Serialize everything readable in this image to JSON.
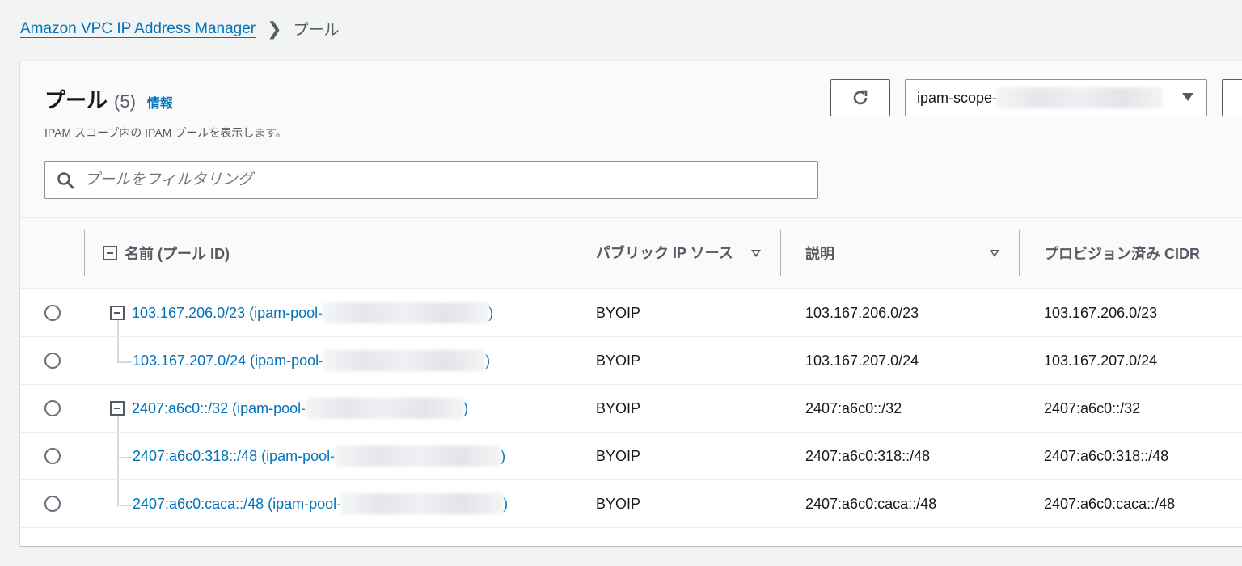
{
  "breadcrumb": {
    "root": "Amazon VPC IP Address Manager",
    "current": "プール"
  },
  "header": {
    "title": "プール",
    "count": "(5)",
    "info": "情報",
    "description": "IPAM スコープ内の IPAM プールを表示します。"
  },
  "filter": {
    "placeholder": "プールをフィルタリング"
  },
  "scope_select": {
    "value": "ipam-scope-"
  },
  "icons": {
    "refresh": "refresh-icon",
    "search": "search-icon",
    "dropdown": "caret-down-icon"
  },
  "colors": {
    "link": "#0073bb",
    "background": "#f2f3f3"
  },
  "table": {
    "columns": [
      "名前 (プール ID)",
      "パブリック IP ソース",
      "説明",
      "プロビジョン済み CIDR"
    ],
    "rows": [
      {
        "name": "103.167.206.0/23 (ipam-pool-",
        "name_end": ")",
        "source": "BYOIP",
        "description": "103.167.206.0/23",
        "cidr": "103.167.206.0/23"
      },
      {
        "name": "103.167.207.0/24 (ipam-pool-",
        "name_end": ")",
        "source": "BYOIP",
        "description": "103.167.207.0/24",
        "cidr": "103.167.207.0/24"
      },
      {
        "name": "2407:a6c0::/32 (ipam-pool-",
        "name_end": ")",
        "source": "BYOIP",
        "description": "2407:a6c0::/32",
        "cidr": "2407:a6c0::/32"
      },
      {
        "name": "2407:a6c0:318::/48 (ipam-pool-",
        "name_end": ")",
        "source": "BYOIP",
        "description": "2407:a6c0:318::/48",
        "cidr": "2407:a6c0:318::/48"
      },
      {
        "name": "2407:a6c0:caca::/48 (ipam-pool-",
        "name_end": ")",
        "source": "BYOIP",
        "description": "2407:a6c0:caca::/48",
        "cidr": "2407:a6c0:caca::/48"
      }
    ]
  }
}
